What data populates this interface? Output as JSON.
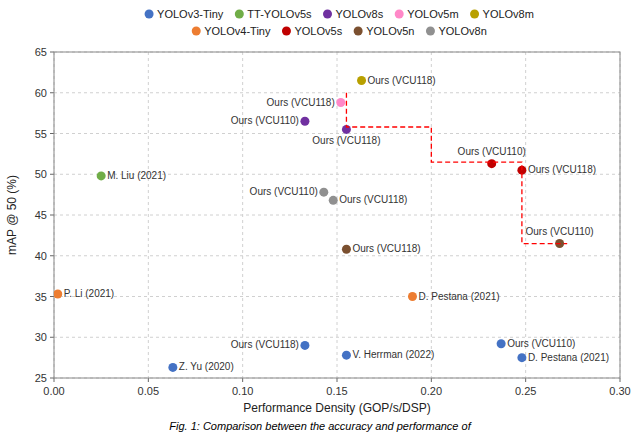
{
  "chart_data": {
    "type": "scatter",
    "xlabel": "Performance Density (GOP/s/DSP)",
    "ylabel": "mAP @ 50 (%)",
    "caption": "Fig. 1: Comparison between the accuracy and performance of",
    "xlim": [
      0.0,
      0.3
    ],
    "ylim": [
      25.0,
      65.0
    ],
    "xticks": [
      {
        "value": 0.0,
        "label": "0.00"
      },
      0.05,
      {
        "value": 0.1,
        "label": "0.10"
      },
      0.15,
      {
        "value": 0.2,
        "label": "0.20"
      },
      0.25,
      {
        "value": 0.3,
        "label": "0.30"
      }
    ],
    "yticks": [
      25,
      30,
      35,
      40,
      45,
      50,
      55,
      60,
      65
    ],
    "grid": true,
    "legend": "top",
    "series": [
      {
        "name": "YOLOv3-Tiny",
        "color": "#4472C4",
        "x": [
          0.063,
          0.133,
          0.155,
          0.237,
          0.248
        ],
        "values": [
          26.3,
          29.0,
          27.8,
          29.2,
          27.5
        ],
        "labels": [
          "Z. Yu (2020)",
          "Ours (VCU118)",
          "V. Herrman (2022)",
          "Ours (VCU110)",
          "D. Pestana (2021)"
        ]
      },
      {
        "name": "TT-YOLOv5s",
        "color": "#70AD47",
        "x": [
          0.025
        ],
        "values": [
          49.8
        ],
        "labels": [
          "M. Liu (2021)"
        ]
      },
      {
        "name": "YOLOv8s",
        "color": "#7030A0",
        "x": [
          0.133,
          0.155
        ],
        "values": [
          56.5,
          55.5
        ],
        "labels": [
          "Ours (VCU110)",
          "Ours (VCU118)"
        ]
      },
      {
        "name": "YOLOv5m",
        "color": "#FF88C8",
        "x": [
          0.152
        ],
        "values": [
          58.8
        ],
        "labels": [
          "Ours (VCU118)"
        ]
      },
      {
        "name": "YOLOv8m",
        "color": "#B8A000",
        "x": [
          0.163
        ],
        "values": [
          61.5
        ],
        "labels": [
          "Ours (VCU118)"
        ]
      },
      {
        "name": "YOLOv4-Tiny",
        "color": "#ED7D31",
        "x": [
          0.002,
          0.19
        ],
        "values": [
          35.3,
          35.0
        ],
        "labels": [
          "P. Li (2021)",
          "D. Pestana (2021)"
        ]
      },
      {
        "name": "YOLOv5s",
        "color": "#C00000",
        "x": [
          0.232,
          0.248
        ],
        "values": [
          51.3,
          50.5
        ],
        "labels": [
          "Ours (VCU110)",
          "Ours (VCU118)"
        ]
      },
      {
        "name": "YOLOv5n",
        "color": "#7B5030",
        "x": [
          0.155,
          0.268
        ],
        "values": [
          40.8,
          41.5
        ],
        "labels": [
          "Ours (VCU118)",
          "Ours (VCU110)"
        ]
      },
      {
        "name": "YOLOv8n",
        "color": "#909090",
        "x": [
          0.143,
          0.148
        ],
        "values": [
          47.8,
          46.8
        ],
        "labels": [
          "Ours (VCU110)",
          "Ours (VCU118)"
        ]
      },
      {
        "type": "line",
        "color": "red",
        "line_style": "dashed",
        "x": [
          0.155,
          0.155,
          0.2,
          0.2,
          0.248,
          0.248,
          0.272
        ],
        "values": [
          60.0,
          55.8,
          55.8,
          51.5,
          51.5,
          41.5,
          41.5
        ]
      }
    ]
  }
}
